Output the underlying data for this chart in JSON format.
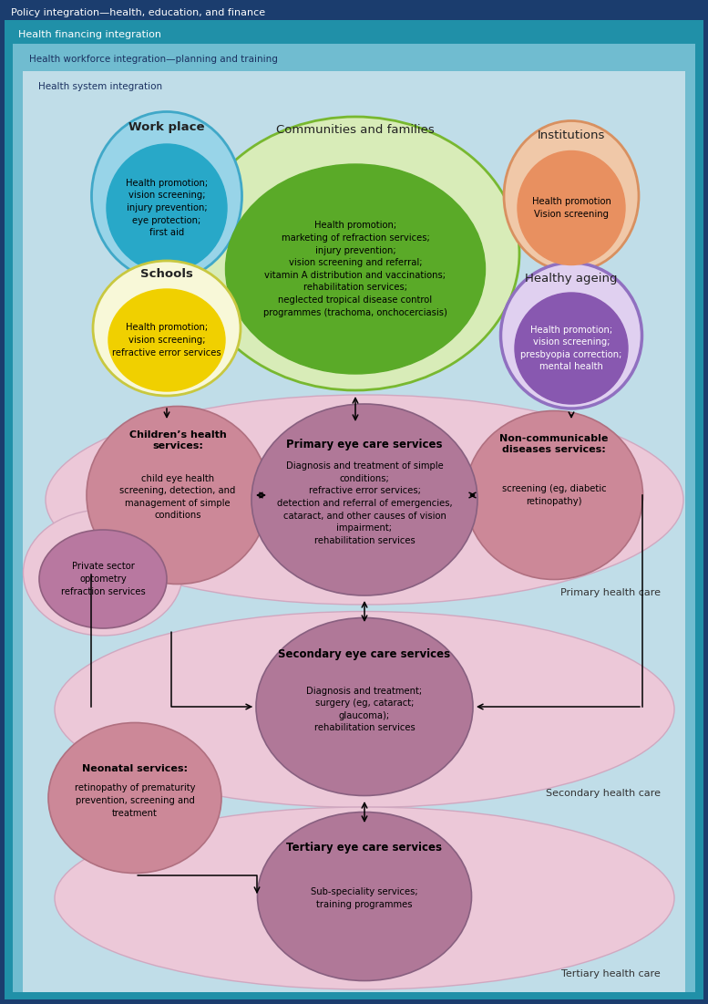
{
  "fig_width": 7.77,
  "fig_height": 11.01,
  "bg_outer": "#1b3d6e",
  "bg_teal": "#2090a8",
  "bg_light_teal": "#70bcd0",
  "bg_lightest": "#c0dde8",
  "header1": "Policy integration—health, education, and finance",
  "header2": "Health financing integration",
  "header3": "Health workforce integration—planning and training",
  "header4": "Health system integration",
  "community_outer_color": "#d8ecb8",
  "community_outer_edge": "#78b830",
  "community_outer_label": "Communities and families",
  "community_inner_color": "#5aaa28",
  "community_inner_text": "Health promotion;\nmarketing of refraction services;\ninjury prevention;\nvision screening and referral;\nvitamin A distribution and vaccinations;\nrehabilitation services;\nneglected tropical disease control\nprogrammes (trachoma, onchocerciasis)",
  "workplace_outer_color": "#98d4e8",
  "workplace_outer_edge": "#40a8c8",
  "workplace_label": "Work place",
  "workplace_inner_color": "#28a8c8",
  "workplace_text": "Health promotion;\nvision screening;\ninjury prevention;\neye protection;\nfirst aid",
  "schools_outer_color": "#f8f8d8",
  "schools_outer_edge": "#c8c840",
  "schools_label": "Schools",
  "schools_inner_color": "#f0d000",
  "schools_text": "Health promotion;\nvision screening;\nrefractive error services",
  "institutions_outer_color": "#f0c8a8",
  "institutions_outer_edge": "#d89060",
  "institutions_label": "Institutions",
  "institutions_inner_color": "#e89060",
  "institutions_text": "Health promotion\nVision screening",
  "healthy_ageing_outer_color": "#e0d0f0",
  "healthy_ageing_outer_edge": "#9070c0",
  "healthy_ageing_label": "Healthy ageing",
  "healthy_ageing_inner_color": "#8858b0",
  "healthy_ageing_text": "Health promotion;\nvision screening;\npresbyopia correction;\nmental health",
  "primary_bg_color": "#ecc8d8",
  "primary_bg_edge": "#d0a8c0",
  "primary_circle_color": "#b07898",
  "primary_circle_edge": "#886080",
  "primary_label": "Primary eye care services",
  "primary_text": "Diagnosis and treatment of simple\nconditions;\nrefractive error services;\ndetection and referral of emergencies,\ncataract, and other causes of vision\nimpairment;\nrehabilitation services",
  "children_circle_color": "#cc8898",
  "children_circle_edge": "#b07080",
  "children_label": "Children’s health\nservices:",
  "children_text": "child eye health\nscreening, detection, and\nmanagement of simple\nconditions",
  "ncd_circle_color": "#cc8898",
  "ncd_circle_edge": "#b07080",
  "ncd_label": "Non-communicable\ndiseases services:",
  "ncd_text": "screening (eg, diabetic\nretinopathy)",
  "private_outer_color": "#ecc8d8",
  "private_outer_edge": "#d0a8c0",
  "private_circle_color": "#b878a0",
  "private_circle_edge": "#906080",
  "private_text": "Private sector\noptometry\nrefraction services",
  "secondary_bg_color": "#ecc8d8",
  "secondary_bg_edge": "#d0a8c0",
  "secondary_circle_color": "#b07898",
  "secondary_circle_edge": "#886080",
  "secondary_label": "Secondary eye care services",
  "secondary_text": "Diagnosis and treatment;\nsurgery (eg, cataract;\nglaucoma);\nrehabilitation services",
  "neonatal_circle_color": "#cc8898",
  "neonatal_circle_edge": "#b07080",
  "neonatal_label": "Neonatal services:",
  "neonatal_text": "retinopathy of prematurity\nprevention, screening and\ntreatment",
  "tertiary_bg_color": "#ecc8d8",
  "tertiary_bg_edge": "#d0a8c0",
  "tertiary_circle_color": "#b07898",
  "tertiary_circle_edge": "#886080",
  "tertiary_label": "Tertiary eye care services",
  "tertiary_text": "Sub-speciality services;\ntraining programmes",
  "primary_care_label": "Primary health care",
  "secondary_care_label": "Secondary health care",
  "tertiary_care_label": "Tertiary health care"
}
